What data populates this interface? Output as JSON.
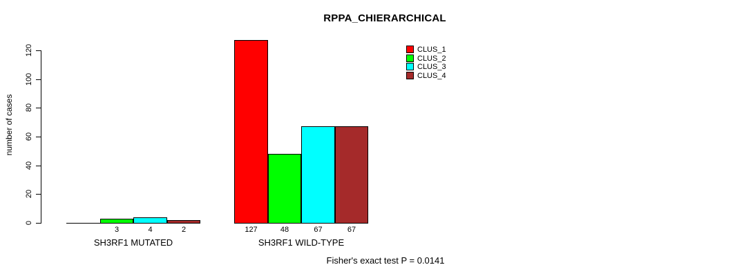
{
  "title": "RPPA_CHIERARCHICAL",
  "chart_data": {
    "type": "bar",
    "title": "RPPA_CHIERARCHICAL",
    "ylabel": "number of cases",
    "xlabel": "",
    "ylim": [
      0,
      120
    ],
    "yticks": [
      0,
      20,
      40,
      60,
      80,
      100,
      120
    ],
    "grid": false,
    "legend_position": "top-right",
    "categories": [
      "SH3RF1 MUTATED",
      "SH3RF1 WILD-TYPE"
    ],
    "series": [
      {
        "name": "CLUS_1",
        "color": "#FF0000",
        "values": [
          0,
          127
        ]
      },
      {
        "name": "CLUS_2",
        "color": "#00FF00",
        "values": [
          3,
          48
        ]
      },
      {
        "name": "CLUS_3",
        "color": "#00FFFF",
        "values": [
          4,
          67
        ]
      },
      {
        "name": "CLUS_4",
        "color": "#A52A2A",
        "values": [
          2,
          67
        ]
      }
    ],
    "bar_labels": [
      [
        null,
        "3",
        "4",
        "2"
      ],
      [
        "127",
        "48",
        "67",
        "67"
      ]
    ],
    "annotation": "Fisher's exact test P = 0.0141",
    "colors": {
      "bar_border": "#000000",
      "text": "#000000",
      "background": "#FFFFFF"
    }
  }
}
